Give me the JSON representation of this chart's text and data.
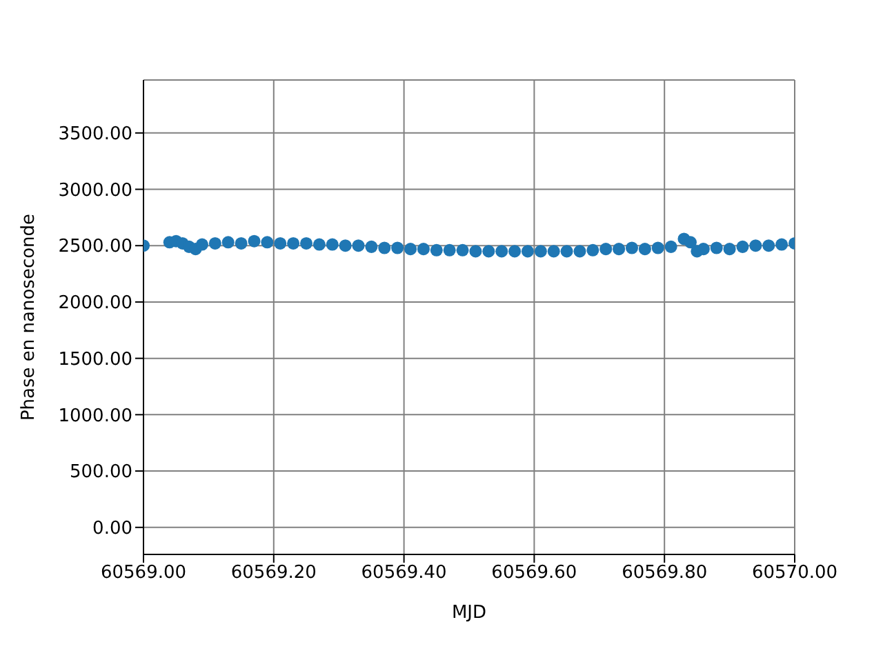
{
  "chart_data": {
    "type": "scatter",
    "xlabel": "MJD",
    "ylabel": "Phase en nanoseconde",
    "x": [
      60569.0,
      60569.04,
      60569.05,
      60569.06,
      60569.07,
      60569.08,
      60569.09,
      60569.11,
      60569.13,
      60569.15,
      60569.17,
      60569.19,
      60569.21,
      60569.23,
      60569.25,
      60569.27,
      60569.29,
      60569.31,
      60569.33,
      60569.35,
      60569.37,
      60569.39,
      60569.41,
      60569.43,
      60569.45,
      60569.47,
      60569.49,
      60569.51,
      60569.53,
      60569.55,
      60569.57,
      60569.59,
      60569.61,
      60569.63,
      60569.65,
      60569.67,
      60569.69,
      60569.71,
      60569.73,
      60569.75,
      60569.77,
      60569.79,
      60569.81,
      60569.83,
      60569.84,
      60569.85,
      60569.86,
      60569.88,
      60569.9,
      60569.92,
      60569.94,
      60569.96,
      60569.98,
      60570.0
    ],
    "values": [
      2500,
      2530,
      2540,
      2520,
      2490,
      2470,
      2510,
      2520,
      2530,
      2520,
      2540,
      2530,
      2520,
      2520,
      2520,
      2510,
      2510,
      2500,
      2500,
      2490,
      2480,
      2480,
      2470,
      2470,
      2460,
      2460,
      2460,
      2450,
      2450,
      2450,
      2450,
      2450,
      2450,
      2450,
      2450,
      2450,
      2460,
      2470,
      2470,
      2480,
      2470,
      2480,
      2490,
      2560,
      2530,
      2450,
      2470,
      2480,
      2470,
      2490,
      2500,
      2500,
      2510,
      2520
    ],
    "color": "#1f77b4",
    "marker": "circle",
    "xlim": [
      60569.0,
      60570.0
    ],
    "xticks": [
      {
        "value": 60569.0,
        "label": "60569.00"
      },
      {
        "value": 60569.2,
        "label": "60569.20"
      },
      {
        "value": 60569.4,
        "label": "60569.40"
      },
      {
        "value": 60569.6,
        "label": "60569.60"
      },
      {
        "value": 60569.8,
        "label": "60569.80"
      },
      {
        "value": 60570.0,
        "label": "60570.00"
      }
    ],
    "ylim": [
      -240,
      3970
    ],
    "yticks": [
      {
        "value": 0,
        "label": "0.00"
      },
      {
        "value": 500,
        "label": "500.00"
      },
      {
        "value": 1000,
        "label": "1000.00"
      },
      {
        "value": 1500,
        "label": "1500.00"
      },
      {
        "value": 2000,
        "label": "2000.00"
      },
      {
        "value": 2500,
        "label": "2500.00"
      },
      {
        "value": 3000,
        "label": "3000.00"
      },
      {
        "value": 3500,
        "label": "3500.00"
      }
    ],
    "grid": true
  }
}
